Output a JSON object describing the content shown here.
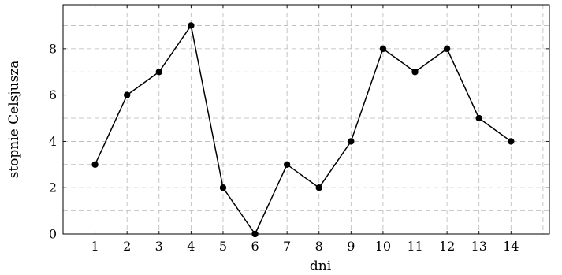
{
  "chart_data": {
    "type": "line",
    "title": "",
    "xlabel": "dni",
    "ylabel": "stopnie Celsjusza",
    "x": [
      1,
      2,
      3,
      4,
      5,
      6,
      7,
      8,
      9,
      10,
      11,
      12,
      13,
      14
    ],
    "series": [
      {
        "values": [
          3,
          6,
          7,
          9,
          2,
          0,
          3,
          2,
          4,
          8,
          7,
          8,
          5,
          4
        ],
        "color": "#000000",
        "marker": "circle"
      }
    ],
    "xlim": [
      0,
      15.2
    ],
    "ylim": [
      0,
      9.9
    ],
    "xticks": [
      1,
      2,
      3,
      4,
      5,
      6,
      7,
      8,
      9,
      10,
      11,
      12,
      13,
      14
    ],
    "xtick_labels": [
      "1",
      "2",
      "3",
      "4",
      "5",
      "6",
      "7",
      "8",
      "9",
      "10",
      "11",
      "12",
      "13",
      "14"
    ],
    "yticks": [
      0,
      2,
      4,
      6,
      8
    ],
    "ytick_labels": [
      "0",
      "2",
      "4",
      "6",
      "8"
    ],
    "grid_x": [
      0,
      1,
      2,
      3,
      4,
      5,
      6,
      7,
      8,
      9,
      10,
      11,
      12,
      13,
      14,
      15
    ],
    "grid_y": [
      0,
      1,
      2,
      3,
      4,
      5,
      6,
      7,
      8,
      9
    ],
    "grid": true,
    "grid_style": "dashed",
    "legend": "none"
  }
}
